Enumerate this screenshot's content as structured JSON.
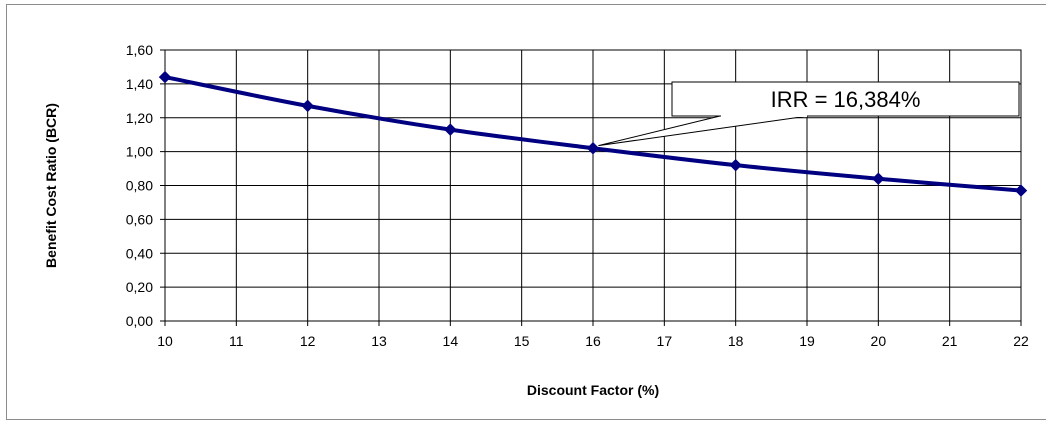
{
  "chart_data": {
    "type": "line",
    "title": "",
    "xlabel": "Discount Factor (%)",
    "ylabel": "Benefit Cost Ratio (BCR)",
    "xlim": [
      10,
      22
    ],
    "ylim": [
      0,
      1.6
    ],
    "x_ticks": [
      "10",
      "11",
      "12",
      "13",
      "14",
      "15",
      "16",
      "17",
      "18",
      "19",
      "20",
      "21",
      "22"
    ],
    "y_ticks": [
      "0,00",
      "0,20",
      "0,40",
      "0,60",
      "0,80",
      "1,00",
      "1,20",
      "1,40",
      "1,60"
    ],
    "grid": true,
    "legend": "none",
    "series": [
      {
        "x": [
          10,
          12,
          14,
          16,
          18,
          20,
          22
        ],
        "values": [
          1.44,
          1.27,
          1.13,
          1.02,
          0.92,
          0.84,
          0.77
        ],
        "color": "#000080",
        "marker": "diamond"
      }
    ],
    "annotation": {
      "text": "IRR = 16,384%",
      "x": 16.384,
      "y": 1.0
    }
  }
}
